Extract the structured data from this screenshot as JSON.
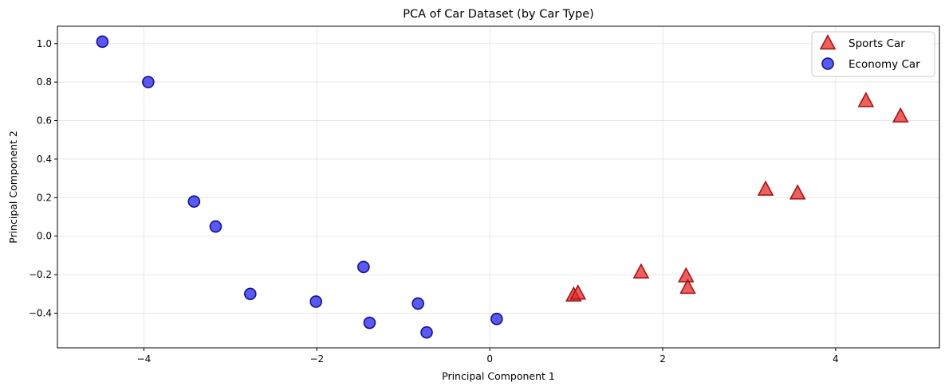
{
  "chart_data": {
    "type": "scatter",
    "title": "PCA of Car Dataset (by Car Type)",
    "xlabel": "Principal Component 1",
    "ylabel": "Principal Component 2",
    "xlim": [
      -5.0,
      5.2
    ],
    "ylim": [
      -0.58,
      1.09
    ],
    "xticks": [
      -4,
      -2,
      0,
      2,
      4
    ],
    "xtick_labels": [
      "−4",
      "−2",
      "0",
      "2",
      "4"
    ],
    "yticks": [
      -0.4,
      -0.2,
      0.0,
      0.2,
      0.4,
      0.6,
      0.8,
      1.0
    ],
    "ytick_labels": [
      "−0.4",
      "−0.2",
      "0.0",
      "0.2",
      "0.4",
      "0.6",
      "0.8",
      "1.0"
    ],
    "grid": true,
    "legend_position": "top-right",
    "series": [
      {
        "name": "Sports Car",
        "marker": "triangle",
        "color": "#e8231f",
        "edge_color": "#a31515",
        "points": [
          {
            "x": 0.97,
            "y": -0.31
          },
          {
            "x": 1.02,
            "y": -0.3
          },
          {
            "x": 1.75,
            "y": -0.19
          },
          {
            "x": 2.27,
            "y": -0.21
          },
          {
            "x": 2.29,
            "y": -0.27
          },
          {
            "x": 3.19,
            "y": 0.24
          },
          {
            "x": 3.56,
            "y": 0.22
          },
          {
            "x": 4.35,
            "y": 0.7
          },
          {
            "x": 4.75,
            "y": 0.62
          }
        ]
      },
      {
        "name": "Economy Car",
        "marker": "circle",
        "color": "#1a1aee",
        "edge_color": "#12128e",
        "points": [
          {
            "x": -4.48,
            "y": 1.01
          },
          {
            "x": -3.95,
            "y": 0.8
          },
          {
            "x": -3.42,
            "y": 0.18
          },
          {
            "x": -3.17,
            "y": 0.05
          },
          {
            "x": -2.77,
            "y": -0.3
          },
          {
            "x": -2.01,
            "y": -0.34
          },
          {
            "x": -1.46,
            "y": -0.16
          },
          {
            "x": -1.39,
            "y": -0.45
          },
          {
            "x": -0.83,
            "y": -0.35
          },
          {
            "x": -0.73,
            "y": -0.5
          },
          {
            "x": 0.08,
            "y": -0.43
          }
        ]
      }
    ]
  }
}
